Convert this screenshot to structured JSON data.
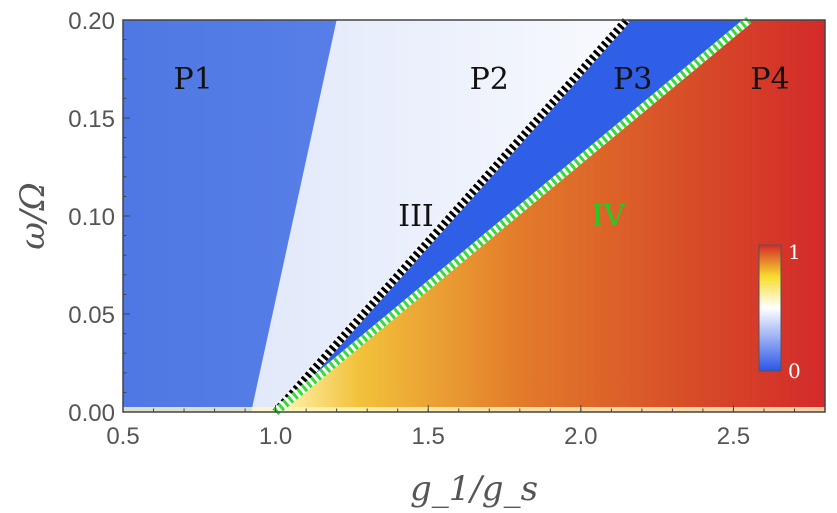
{
  "chart_data": {
    "type": "heatmap",
    "title": "",
    "xlabel": "g_1/g_s",
    "ylabel": "ω/Ω",
    "xlim": [
      0.5,
      2.8
    ],
    "ylim": [
      0.0,
      0.2
    ],
    "xticks": [
      0.5,
      1.0,
      1.5,
      2.0,
      2.5
    ],
    "xtick_labels": [
      "0.5",
      "1.0",
      "1.5",
      "2.0",
      "2.5"
    ],
    "yticks": [
      0.0,
      0.05,
      0.1,
      0.15,
      0.2
    ],
    "ytick_labels": [
      "0.00",
      "0.05",
      "0.10",
      "0.15",
      "0.20"
    ],
    "colorbar": {
      "min_label": "0",
      "max_label": "1",
      "colors": [
        "#2b55e8",
        "#ffffff",
        "#f6dc2c",
        "#d42a2a"
      ]
    },
    "regions": [
      {
        "label": "P1",
        "x": 0.73,
        "y": 0.17,
        "color": "#111111"
      },
      {
        "label": "P2",
        "x": 1.7,
        "y": 0.17,
        "color": "#111111"
      },
      {
        "label": "P3",
        "x": 2.17,
        "y": 0.17,
        "color": "#111111"
      },
      {
        "label": "P4",
        "x": 2.62,
        "y": 0.17,
        "color": "#111111"
      },
      {
        "label": "III",
        "x": 1.46,
        "y": 0.1,
        "color": "#111111"
      },
      {
        "label": "IV",
        "x": 2.09,
        "y": 0.1,
        "color": "#22cc22"
      }
    ],
    "boundaries": [
      {
        "label": "III",
        "style": "black-white dotted",
        "color": "#000000",
        "points": [
          [
            1.0,
            0.0
          ],
          [
            2.15,
            0.2
          ]
        ]
      },
      {
        "label": "IV",
        "style": "green-white dotted",
        "color": "#33dd33",
        "points": [
          [
            1.0,
            0.0
          ],
          [
            2.55,
            0.2
          ]
        ]
      }
    ]
  }
}
